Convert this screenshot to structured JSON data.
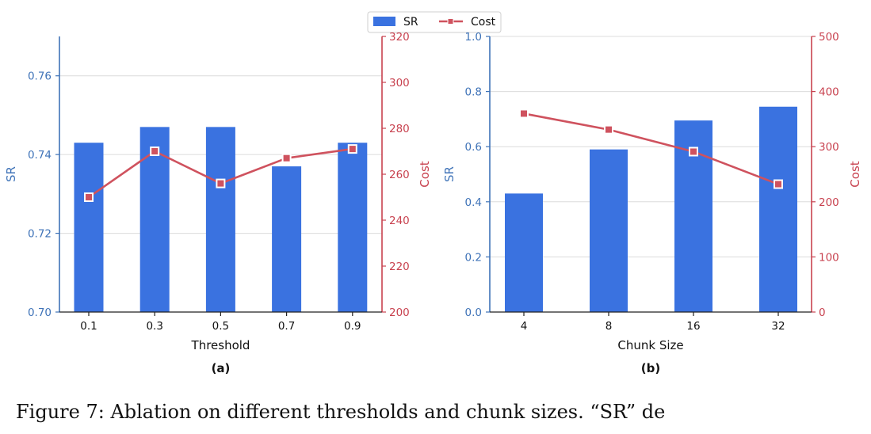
{
  "colors": {
    "bar": "#3a72e0",
    "line": "#cf525e",
    "sr_axis": "#3f73b8",
    "cost_axis": "#c8424f",
    "grid": "#dcdcdc"
  },
  "legend": {
    "sr": "SR",
    "cost": "Cost"
  },
  "chart_data": [
    {
      "panel": "(a)",
      "type": "bar+line",
      "xlabel": "Threshold",
      "ylabel_left": "SR",
      "ylabel_right": "Cost",
      "categories": [
        "0.1",
        "0.3",
        "0.5",
        "0.7",
        "0.9"
      ],
      "ylim_left": [
        0.7,
        0.77
      ],
      "yticks_left": [
        "0.70",
        "0.72",
        "0.74",
        "0.76"
      ],
      "ylim_right": [
        200,
        320
      ],
      "yticks_right": [
        "200",
        "220",
        "240",
        "260",
        "280",
        "300",
        "320"
      ],
      "series": [
        {
          "name": "SR",
          "axis": "left",
          "kind": "bar",
          "values": [
            0.743,
            0.747,
            0.747,
            0.737,
            0.743
          ]
        },
        {
          "name": "Cost",
          "axis": "right",
          "kind": "line",
          "values": [
            250,
            270,
            256,
            267,
            271
          ]
        }
      ]
    },
    {
      "panel": "(b)",
      "type": "bar+line",
      "xlabel": "Chunk Size",
      "ylabel_left": "SR",
      "ylabel_right": "Cost",
      "categories": [
        "4",
        "8",
        "16",
        "32"
      ],
      "ylim_left": [
        0.0,
        1.0
      ],
      "yticks_left": [
        "0.0",
        "0.2",
        "0.4",
        "0.6",
        "0.8",
        "1.0"
      ],
      "ylim_right": [
        0,
        500
      ],
      "yticks_right": [
        "0",
        "100",
        "200",
        "300",
        "400",
        "500"
      ],
      "series": [
        {
          "name": "SR",
          "axis": "left",
          "kind": "bar",
          "values": [
            0.43,
            0.59,
            0.695,
            0.745
          ]
        },
        {
          "name": "Cost",
          "axis": "right",
          "kind": "line",
          "values": [
            360,
            331,
            291,
            232
          ]
        }
      ]
    }
  ],
  "caption": "Figure 7: Ablation on different thresholds and chunk sizes. “SR” de"
}
